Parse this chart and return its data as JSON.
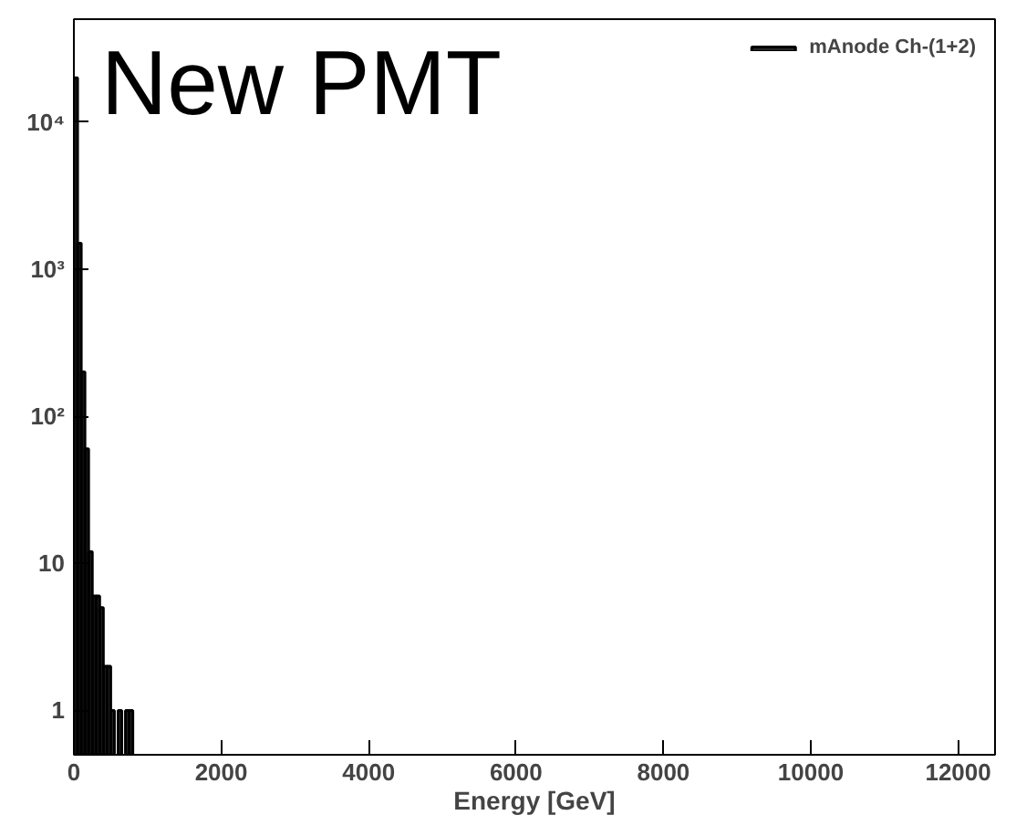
{
  "chart_data": {
    "type": "histogram",
    "title": "New PMT",
    "xlabel": "Energy [GeV]",
    "bins": [
      0,
      50,
      100,
      150,
      200,
      250,
      300,
      350,
      400,
      450,
      500,
      550,
      600,
      650,
      700,
      750,
      800
    ],
    "series": [
      {
        "name": "mAnode Ch-(1+2)",
        "color": "#000000",
        "values": [
          20000,
          1500,
          200,
          60,
          12,
          6,
          6,
          5,
          2,
          2,
          1,
          null,
          1,
          null,
          1,
          1
        ]
      }
    ],
    "log": "y",
    "xlim": [
      0,
      12500
    ],
    "ylim": [
      0.5,
      50000
    ],
    "xticks": [
      0,
      2000,
      4000,
      6000,
      8000,
      10000,
      12000
    ],
    "yticks": [
      1,
      {
        "value": 10,
        "label": "10"
      },
      {
        "value": 100,
        "label": "10²"
      },
      {
        "value": 1000,
        "label": "10³"
      },
      {
        "value": 10000,
        "label": "10⁴"
      }
    ],
    "legend": "top right",
    "grid": false
  }
}
